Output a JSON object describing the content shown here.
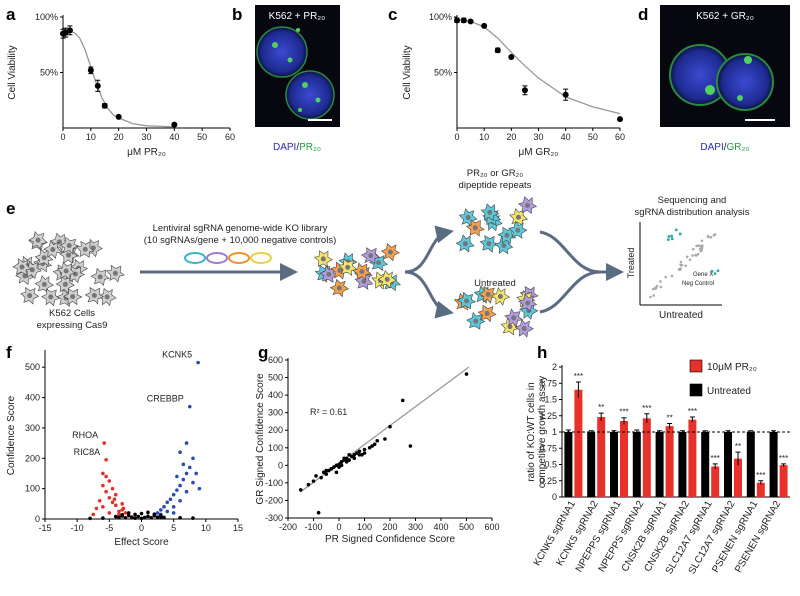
{
  "panel_labels": {
    "b": "b",
    "d": "d",
    "e": "e"
  },
  "micrographs": [
    {
      "title": "K562 + PR₂₀",
      "caption": [
        "DAPI",
        "/",
        "PR₂₀"
      ]
    },
    {
      "title": "K562 + GR₂₀",
      "caption": [
        "DAPI",
        "/",
        "GR₂₀"
      ]
    }
  ],
  "diagram": {
    "library": [
      "Lentiviral sgRNA genome-wide KO library",
      "(10 sgRNAs/gene + 10,000 negative controls)"
    ],
    "cells": [
      "K562 Cells",
      "expressing Cas9"
    ],
    "treated": [
      "PR₂₀ or GR₂₀",
      "dipeptide repeats"
    ],
    "untreated": "Untreated",
    "analysis": [
      "Sequencing and",
      "sgRNA distribution analysis"
    ],
    "mini_plot": {
      "ylabel": "Treated",
      "xlabel": "Untreated",
      "labels": [
        "Gene X",
        "Neg Control"
      ]
    }
  },
  "chart_data": [
    {
      "type": "scatter",
      "panel": "a",
      "xlabel": "μM PR₂₀",
      "ylabel": "Cell Viability",
      "xlim": [
        0,
        60
      ],
      "xticks": [
        0,
        10,
        20,
        30,
        40,
        50,
        60
      ],
      "ylim": [
        0,
        100
      ],
      "yticks": [
        {
          "value": 50,
          "label": "50%"
        },
        {
          "value": 100,
          "label": "100%"
        }
      ],
      "series": [
        {
          "color": "#000000",
          "x": [
            0,
            1,
            2.5,
            10,
            12.5,
            15,
            20,
            40
          ],
          "values": [
            85,
            86,
            88,
            52,
            38,
            20,
            10,
            3
          ],
          "errors": [
            4,
            4,
            4,
            3,
            5,
            2,
            1,
            1
          ]
        }
      ],
      "curve": {
        "color": "#999999",
        "x": [
          0,
          4,
          6,
          8,
          10,
          12,
          14,
          16,
          18,
          20,
          25,
          30,
          40
        ],
        "values": [
          87,
          86,
          81,
          70,
          55,
          40,
          27,
          18,
          12,
          9,
          4,
          2,
          1
        ]
      }
    },
    {
      "type": "scatter",
      "panel": "c",
      "xlabel": "μM GR₂₀",
      "ylabel": "Cell Viability",
      "xlim": [
        0,
        60
      ],
      "xticks": [
        0,
        10,
        20,
        30,
        40,
        50,
        60
      ],
      "ylim": [
        0,
        100
      ],
      "yticks": [
        {
          "value": 50,
          "label": "50%"
        },
        {
          "value": 100,
          "label": "100%"
        }
      ],
      "series": [
        {
          "color": "#000000",
          "x": [
            0,
            2.5,
            5,
            10,
            15,
            20,
            25,
            40,
            60
          ],
          "values": [
            97,
            97,
            96,
            92,
            70,
            64,
            34,
            30,
            8
          ],
          "errors": [
            2,
            2,
            1,
            1,
            2,
            1,
            4,
            5,
            1
          ]
        }
      ],
      "curve": {
        "color": "#999999",
        "x": [
          0,
          5,
          10,
          15,
          20,
          25,
          30,
          40,
          50,
          60
        ],
        "values": [
          98,
          96,
          91,
          81,
          68,
          56,
          45,
          28,
          19,
          13
        ]
      }
    },
    {
      "type": "scatter",
      "panel": "f",
      "xlabel": "Effect Score",
      "ylabel": "Confidence Score",
      "xlim": [
        -15,
        15
      ],
      "xticks": [
        -15,
        -10,
        -5,
        0,
        5,
        10,
        15
      ],
      "ylim": [
        0,
        550
      ],
      "yticks": [
        0,
        100,
        200,
        300,
        400,
        500
      ],
      "series": [
        {
          "color": "#e0302a",
          "x": [
            -2,
            -2.5,
            -3,
            -3.5,
            -4,
            -4.5,
            -5,
            -5.5,
            -6,
            -6.5,
            -7,
            -3,
            -4,
            -5,
            -6,
            -4.5,
            -5.5,
            -6,
            -5,
            -7.5,
            -3.5,
            -2.8,
            -4.2,
            -5.8,
            -5.5
          ],
          "values": [
            10,
            20,
            30,
            25,
            45,
            55,
            70,
            90,
            110,
            60,
            35,
            50,
            80,
            125,
            150,
            100,
            140,
            40,
            20,
            15,
            15,
            35,
            65,
            250,
            195
          ]
        },
        {
          "color": "#2a4bb0",
          "x": [
            2,
            2.5,
            3,
            3.5,
            4,
            4.5,
            5,
            5.5,
            6,
            6.5,
            7,
            7.5,
            8,
            8.5,
            9,
            4,
            5,
            6,
            7,
            8,
            5.5,
            6.5,
            3,
            7.5,
            8.8,
            6,
            7,
            5
          ],
          "values": [
            10,
            20,
            30,
            40,
            55,
            65,
            80,
            95,
            110,
            130,
            150,
            170,
            200,
            150,
            100,
            25,
            40,
            60,
            90,
            120,
            140,
            180,
            15,
            370,
            515,
            220,
            250,
            20
          ]
        },
        {
          "color": "#000000",
          "x": [
            -4,
            -3.5,
            -3,
            -2.5,
            -2,
            -1.5,
            -1,
            -0.5,
            0,
            0.5,
            1,
            1.5,
            2,
            2.5,
            3,
            3.5,
            -2,
            -1,
            0,
            1,
            2,
            -3,
            3,
            -6,
            -8,
            6,
            8
          ],
          "values": [
            8,
            5,
            10,
            4,
            12,
            6,
            3,
            8,
            2,
            5,
            9,
            4,
            11,
            6,
            7,
            5,
            20,
            15,
            18,
            22,
            16,
            14,
            12,
            3,
            2,
            4,
            3
          ]
        }
      ],
      "annotations": [
        {
          "text": "KCNK5",
          "x": 8.8,
          "y": 515
        },
        {
          "text": "CREBBP",
          "x": 7.5,
          "y": 370
        },
        {
          "text": "RHOA",
          "x": -5.8,
          "y": 250
        },
        {
          "text": "RIC8A",
          "x": -5.5,
          "y": 195
        }
      ]
    },
    {
      "type": "scatter",
      "panel": "g",
      "xlabel": "PR Signed Confidence Score",
      "ylabel": "GR Signed Confidence Score",
      "xlim": [
        -200,
        600
      ],
      "xticks": [
        -200,
        -100,
        0,
        100,
        200,
        300,
        400,
        500,
        600
      ],
      "ylim": [
        -300,
        600
      ],
      "yticks": [
        -300,
        -200,
        -100,
        0,
        100,
        200,
        300,
        400,
        500,
        600
      ],
      "series": [
        {
          "color": "#000000",
          "x": [
            -150,
            -120,
            -100,
            -90,
            -70,
            -60,
            -50,
            -40,
            -30,
            -20,
            -10,
            0,
            5,
            10,
            20,
            30,
            40,
            50,
            60,
            70,
            80,
            90,
            100,
            120,
            140,
            150,
            180,
            200,
            250,
            280,
            500,
            -80,
            -30,
            0,
            20,
            40,
            60,
            -10,
            30,
            10,
            -50,
            80,
            100,
            130
          ],
          "values": [
            -140,
            -110,
            -90,
            -60,
            -70,
            -40,
            -50,
            -30,
            -20,
            -10,
            0,
            5,
            10,
            20,
            30,
            40,
            30,
            50,
            60,
            70,
            80,
            60,
            90,
            100,
            120,
            140,
            150,
            220,
            370,
            110,
            520,
            -270,
            -20,
            -10,
            40,
            60,
            40,
            -40,
            20,
            0,
            -30,
            60,
            70,
            110
          ]
        }
      ],
      "fit": {
        "color": "#999999",
        "x": [
          -150,
          510
        ],
        "values": [
          -150,
          560
        ]
      },
      "annotations": [
        {
          "text": "R² = 0.61"
        }
      ]
    },
    {
      "type": "bar",
      "panel": "h",
      "ylabel": [
        "ratio of KO:WT cells in",
        "competitive growth assay"
      ],
      "categories": [
        "KCNK5 sgRNA1",
        "KCNK5 sgRNA2",
        "NPEPPS sgRNA1",
        "NPEPPS sgRNA2",
        "CNSK2B sgRNA1",
        "CNSK2B sgRNA2",
        "SLC12A7 sgRNA1",
        "SLC12A7 sgRNA2",
        "PSENEN sgRNA1",
        "PSENEN sgRNA2"
      ],
      "ylim": [
        0,
        2
      ],
      "yticks": [
        0,
        0.25,
        0.5,
        0.75,
        1,
        1.25,
        1.5,
        1.75,
        2
      ],
      "legend": "upper right",
      "reference_line": 1,
      "series": [
        {
          "name": "10μM PR₂₀",
          "color": "#e8312a",
          "values": [
            1.65,
            1.23,
            1.17,
            1.21,
            1.09,
            1.19,
            0.47,
            0.59,
            0.22,
            0.49
          ],
          "errors": [
            0.12,
            0.06,
            0.05,
            0.07,
            0.04,
            0.04,
            0.04,
            0.1,
            0.03,
            0.02
          ],
          "significance": [
            "***",
            "**",
            "***",
            "***",
            "**",
            "***",
            "***",
            "**",
            "***",
            "***"
          ]
        },
        {
          "name": "Untreated",
          "color": "#000000",
          "values": [
            1,
            1,
            1,
            1,
            1,
            1,
            1,
            1,
            1,
            1
          ],
          "errors": [
            0.03,
            0.02,
            0.02,
            0.03,
            0.02,
            0.02,
            0.02,
            0.02,
            0.02,
            0.02
          ]
        }
      ]
    }
  ]
}
